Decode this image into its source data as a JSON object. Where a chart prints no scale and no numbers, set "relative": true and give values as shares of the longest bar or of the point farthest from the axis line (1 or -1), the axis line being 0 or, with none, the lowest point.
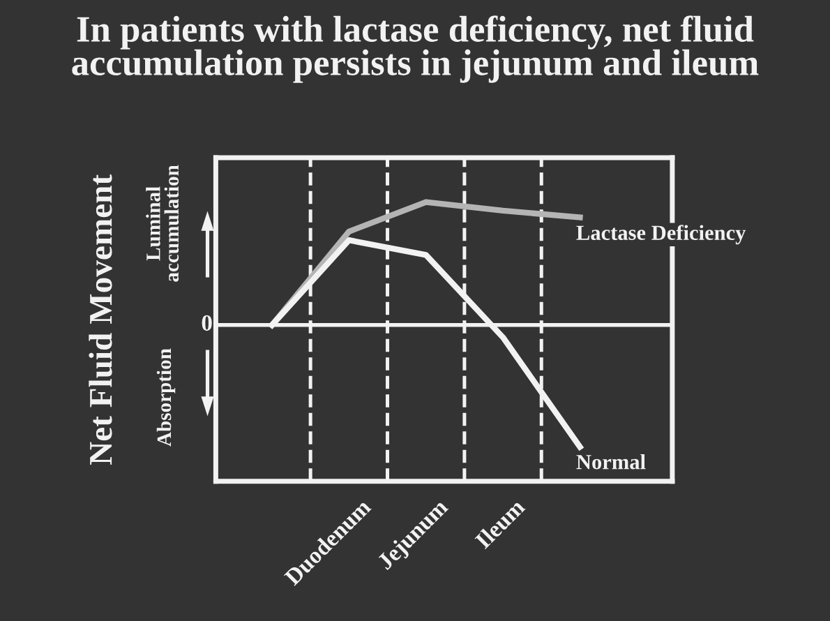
{
  "chart_data": {
    "type": "line",
    "relative": true,
    "title": "In patients with lactase deficiency, net fluid\naccumulation persists in jejunum and ileum",
    "ylabel": "Net Fluid Movement",
    "categories": [
      null,
      "Duodenum",
      "Jejunum",
      "Ileum",
      null
    ],
    "series": [
      {
        "name": "Lactase Deficiency",
        "color": "#b4b4b4",
        "values": [
          0,
          0.76,
          1.0,
          0.93,
          0.875
        ]
      },
      {
        "name": "Normal",
        "color": "#f2f2f2",
        "values": [
          0,
          0.69,
          0.57,
          -0.1,
          -0.99
        ]
      }
    ],
    "annotations": [
      "0",
      "Luminal\naccumulation",
      "Absorption"
    ],
    "marker": "none",
    "line_style": "solid",
    "legend": false
  }
}
